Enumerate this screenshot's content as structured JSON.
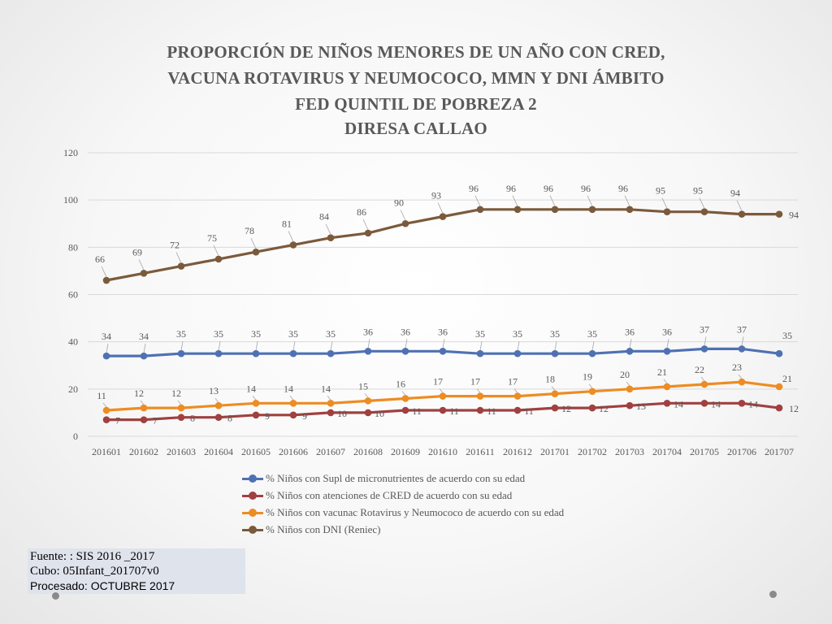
{
  "chart_data": {
    "type": "line",
    "title": [
      "PROPORCIÓN DE NIÑOS MENORES DE UN AÑO CON CRED,",
      "VACUNA ROTAVIRUS Y NEUMOCOCO, MMN Y DNI  ÁMBITO",
      "FED QUINTIL  DE POBREZA 2",
      "DIRESA CALLAO"
    ],
    "categories": [
      "201601",
      "201602",
      "201603",
      "201604",
      "201605",
      "201606",
      "201607",
      "201608",
      "201609",
      "201610",
      "201611",
      "201612",
      "201701",
      "201702",
      "201703",
      "201704",
      "201705",
      "201706",
      "201707"
    ],
    "ylim": [
      0,
      120
    ],
    "yticks": [
      "0",
      "20",
      "40",
      "60",
      "80",
      "100",
      "120"
    ],
    "grid": true,
    "legend_position": "bottom",
    "series": [
      {
        "name": "% Niños con Supl de micronutrientes de acuerdo con su edad",
        "color": "#4f71b3",
        "values": [
          34,
          34,
          35,
          35,
          35,
          35,
          35,
          36,
          36,
          36,
          35,
          35,
          35,
          35,
          36,
          36,
          37,
          37,
          35
        ]
      },
      {
        "name": "% Niños  con atenciones de CRED de acuerdo con su edad",
        "color": "#a04040",
        "values": [
          7,
          7,
          8,
          8,
          9,
          9,
          10,
          10,
          11,
          11,
          11,
          11,
          12,
          12,
          13,
          14,
          14,
          14,
          12
        ]
      },
      {
        "name": "% Niños con vacunac Rotavirus y Neumococo de acuerdo con su edad",
        "color": "#ed8c23",
        "values": [
          11,
          12,
          12,
          13,
          14,
          14,
          14,
          15,
          16,
          17,
          17,
          17,
          18,
          19,
          20,
          21,
          22,
          23,
          21
        ]
      },
      {
        "name": "% Niños con DNI (Reniec)",
        "color": "#7b5a3c",
        "values": [
          66,
          69,
          72,
          75,
          78,
          81,
          84,
          86,
          90,
          93,
          96,
          96,
          96,
          96,
          96,
          95,
          95,
          94,
          94
        ]
      }
    ]
  },
  "source": {
    "line1": "Fuente: : SIS 2016 _2017",
    "line2": "Cubo:  05Infant_201707v0",
    "line3": "Procesado: OCTUBRE 2017"
  }
}
